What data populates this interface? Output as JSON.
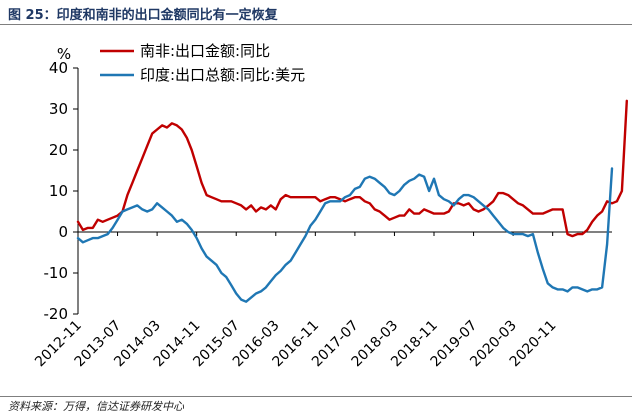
{
  "figure": {
    "title": "图 25：印度和南非的出口金额同比有一定恢复",
    "source": "资料来源：万得，信达证券研发中心"
  },
  "chart_data": {
    "type": "line",
    "title": "印度和南非的出口金额同比有一定恢复",
    "ylabel": "%",
    "xlabel": "",
    "ylim": [
      -20,
      40
    ],
    "yticks": [
      -20,
      -10,
      0,
      10,
      20,
      30,
      40
    ],
    "xlim": [
      "2012-11",
      "2021-11"
    ],
    "xtick_labels": [
      "2012-11",
      "2013-07",
      "2014-03",
      "2014-11",
      "2015-07",
      "2016-03",
      "2016-11",
      "2017-07",
      "2018-03",
      "2018-11",
      "2019-07",
      "2020-03",
      "2020-11"
    ],
    "x_start": "2012-11",
    "x_step": "1 month",
    "legend_position": "top-left",
    "series": [
      {
        "name": "南非:出口金额:同比",
        "color": "#c00000",
        "values": [
          2.5,
          0.5,
          1,
          1,
          3,
          2.5,
          3,
          3.5,
          4,
          5,
          9,
          12,
          15,
          18,
          21,
          24,
          25,
          26,
          25.5,
          26.5,
          26,
          25,
          23,
          20,
          16,
          12,
          9,
          8.5,
          8,
          7.5,
          7.5,
          7.5,
          7,
          6.5,
          5.5,
          6.5,
          5,
          6,
          5.5,
          6.5,
          5.5,
          8,
          9,
          8.5,
          8.5,
          8.5,
          8.5,
          8.5,
          8.5,
          7.5,
          8,
          8.5,
          8.5,
          8,
          7.5,
          8,
          8.5,
          8.5,
          7.5,
          7,
          5.5,
          5,
          4,
          3,
          3.5,
          4,
          4,
          5.5,
          4.5,
          4.5,
          5.5,
          5,
          4.5,
          4.5,
          4.5,
          5,
          7,
          7,
          6.5,
          7,
          5.5,
          5,
          5.5,
          6.5,
          7.5,
          9.5,
          9.5,
          9,
          8,
          7,
          6.5,
          5.5,
          4.5,
          4.5,
          4.5,
          5,
          5.5,
          5.5,
          5.5,
          -0.5,
          -1,
          -0.5,
          -0.5,
          0.5,
          2.5,
          4,
          5,
          7.5,
          7,
          7.5,
          10,
          32
        ]
      },
      {
        "name": "印度:出口总额:同比:美元",
        "color": "#1f77b4",
        "values": [
          -1.5,
          -2.5,
          -2,
          -1.5,
          -1.5,
          -1,
          -0.5,
          1,
          3,
          5,
          5.5,
          6,
          6.5,
          5.5,
          5,
          5.5,
          7,
          6,
          5,
          4,
          2.5,
          3,
          2,
          0.5,
          -1.5,
          -4,
          -6,
          -7,
          -8,
          -10,
          -11,
          -13,
          -15,
          -16.5,
          -17,
          -16,
          -15,
          -14.5,
          -13.5,
          -12,
          -10.5,
          -9.5,
          -8,
          -7,
          -5,
          -3,
          -1,
          1.5,
          3,
          5,
          7,
          7.5,
          7.5,
          7.5,
          8.5,
          9,
          10.5,
          11,
          13,
          13.5,
          13,
          12,
          11,
          9.5,
          9,
          10,
          11.5,
          12.5,
          13,
          14,
          13.5,
          10,
          13,
          9,
          8,
          7.5,
          6.5,
          8,
          9,
          9,
          8.5,
          7.5,
          6.5,
          5.5,
          4,
          2.5,
          1,
          0,
          -0.5,
          -0.5,
          -0.5,
          -1,
          -0.5,
          -5,
          -9,
          -12.5,
          -13.5,
          -14,
          -14,
          -14.5,
          -13.5,
          -13.5,
          -14,
          -14.5,
          -14,
          -14,
          -13.5,
          -3,
          15.5
        ]
      }
    ]
  }
}
